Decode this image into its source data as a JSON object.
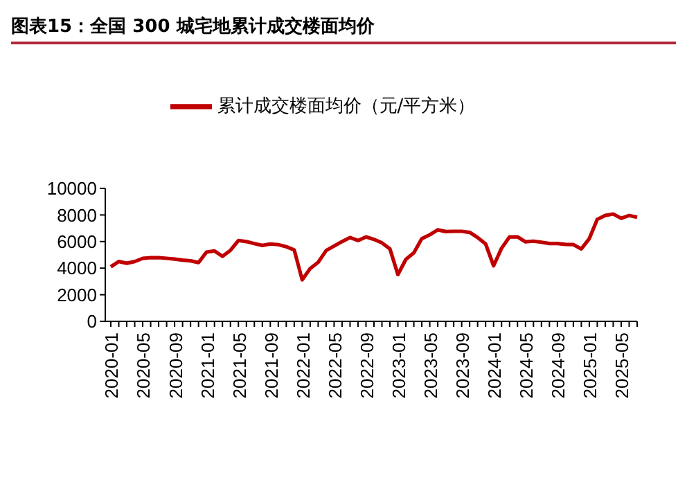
{
  "chart_data": {
    "type": "line",
    "title": "图表15：全国 300 城宅地累计成交楼面均价",
    "categories": [
      "2020-01",
      null,
      null,
      null,
      "2020-05",
      null,
      null,
      null,
      "2020-09",
      null,
      null,
      null,
      "2021-01",
      null,
      null,
      null,
      "2021-05",
      null,
      null,
      null,
      "2021-09",
      null,
      null,
      null,
      "2022-01",
      null,
      null,
      null,
      "2022-05",
      null,
      null,
      null,
      "2022-09",
      null,
      null,
      null,
      "2023-01",
      null,
      null,
      null,
      "2023-05",
      null,
      null,
      null,
      "2023-09",
      null,
      null,
      null,
      "2024-01",
      null,
      null,
      null,
      "2024-05",
      null,
      null,
      null,
      "2024-09",
      null,
      null,
      null,
      "2025-01",
      null,
      null,
      null,
      "2025-05",
      null,
      null
    ],
    "series": [
      {
        "name": "累计成交楼面均价（元/平方米）",
        "color": "#c00000",
        "values": [
          4100,
          4500,
          4370,
          4500,
          4730,
          4790,
          4790,
          4740,
          4680,
          4600,
          4550,
          4420,
          5210,
          5290,
          4890,
          5340,
          6080,
          6000,
          5850,
          5710,
          5820,
          5770,
          5610,
          5370,
          3120,
          3970,
          4440,
          5320,
          5660,
          6000,
          6300,
          6080,
          6350,
          6160,
          5900,
          5450,
          3520,
          4660,
          5160,
          6220,
          6510,
          6880,
          6750,
          6770,
          6770,
          6690,
          6300,
          5820,
          4180,
          5500,
          6350,
          6350,
          5980,
          6030,
          5950,
          5850,
          5850,
          5790,
          5770,
          5450,
          6220,
          7670,
          7960,
          8070,
          7750,
          7960,
          7830
        ]
      }
    ],
    "ylim": [
      0,
      10000
    ],
    "yticks": [
      0,
      2000,
      4000,
      6000,
      8000,
      10000
    ],
    "grid": false,
    "legend": "top",
    "marker": "none",
    "line_style": "solid"
  }
}
